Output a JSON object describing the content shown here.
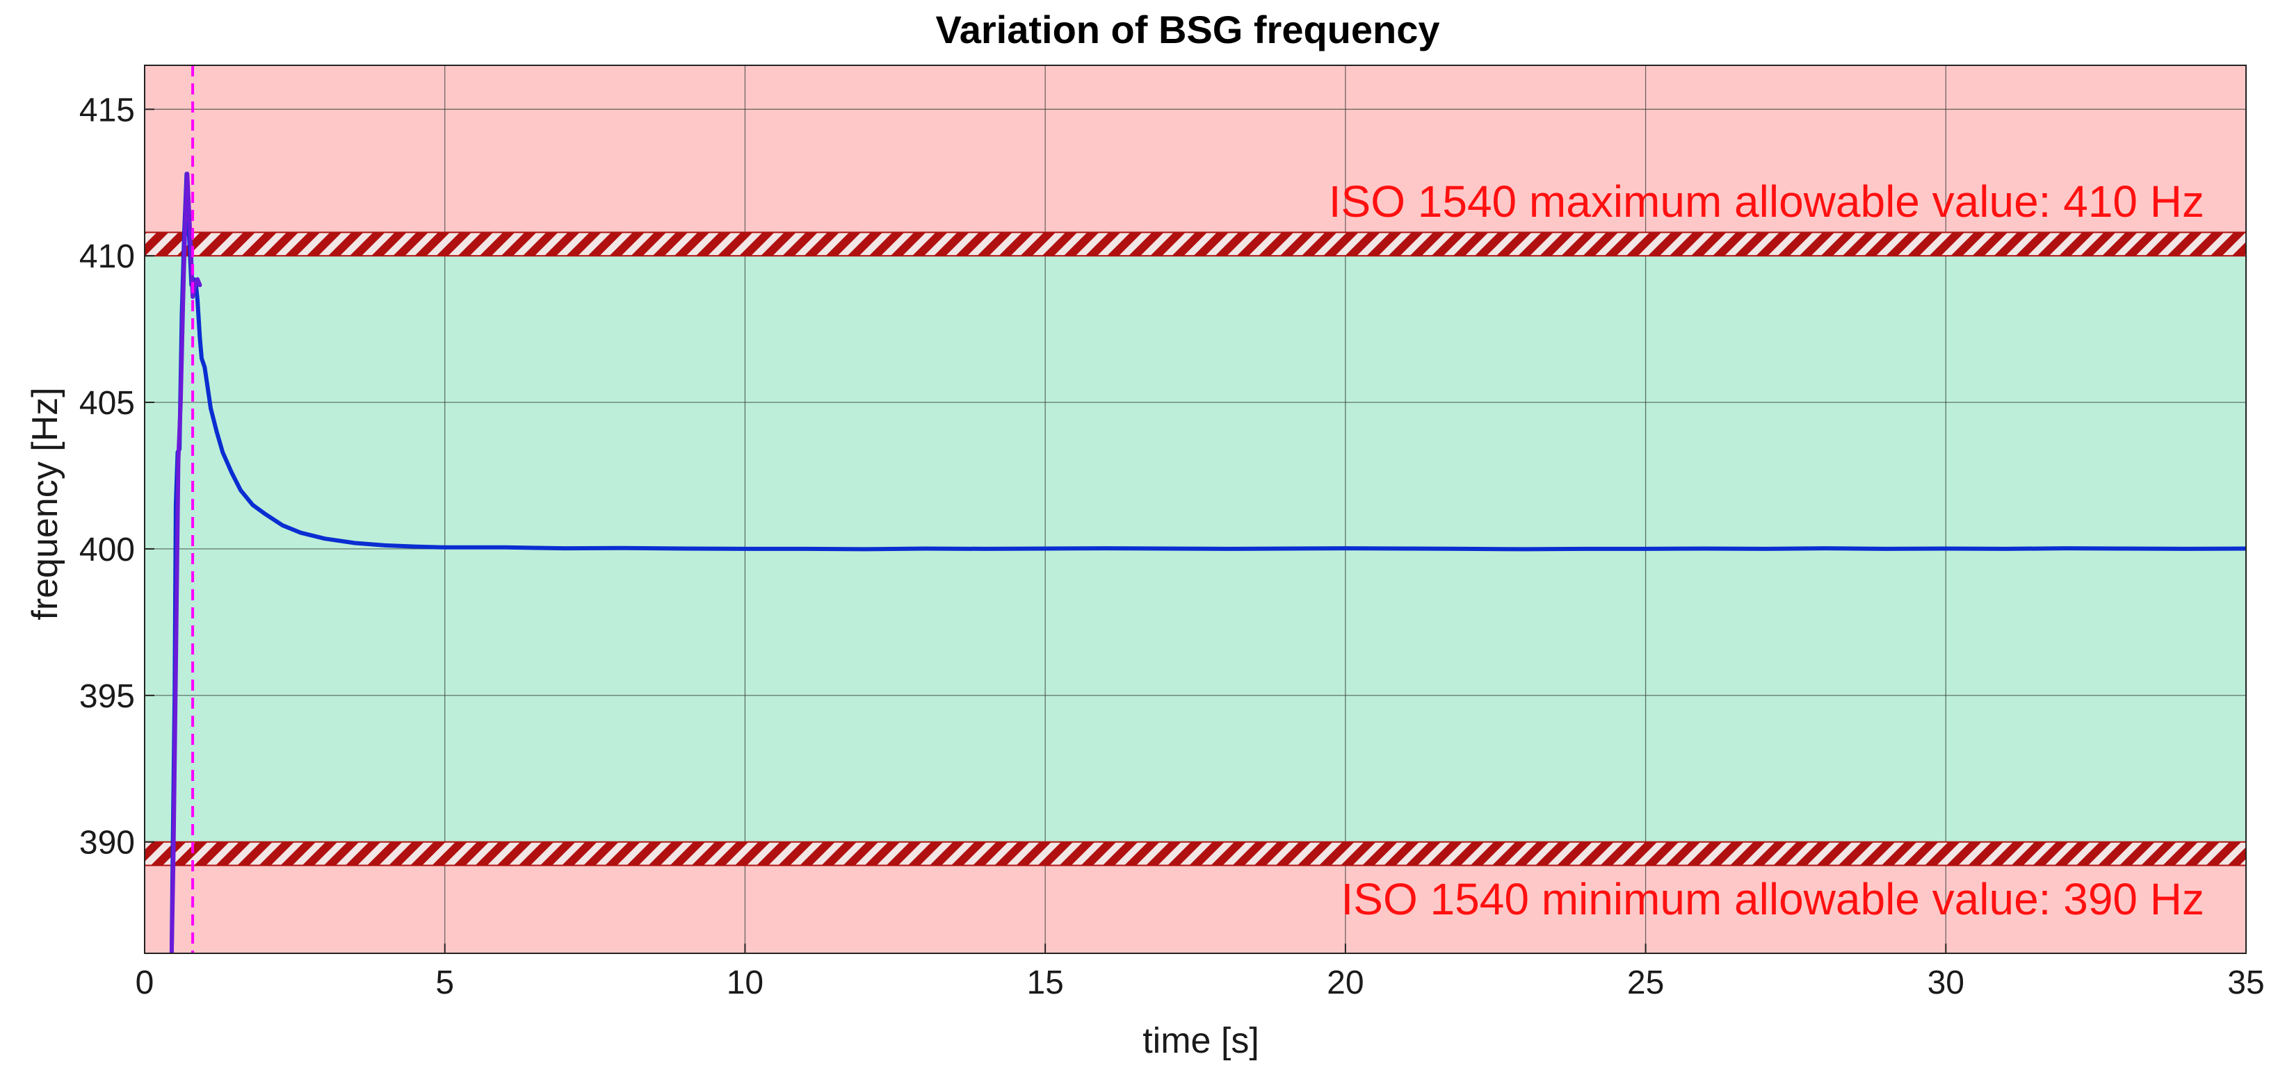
{
  "chart_data": {
    "type": "line",
    "title": "Variation of BSG frequency",
    "xlabel": "time [s]",
    "ylabel": "frequency [Hz]",
    "xlim": [
      0,
      35
    ],
    "ylim": [
      386.2,
      416.5
    ],
    "x_ticks": [
      0,
      5,
      10,
      15,
      20,
      25,
      30,
      35
    ],
    "y_ticks": [
      390,
      395,
      400,
      405,
      410,
      415
    ],
    "grid": true,
    "regions": [
      {
        "name": "above-max",
        "y_from": 410,
        "y_to": 416.5,
        "color": "#ffc8c8"
      },
      {
        "name": "allowable",
        "y_from": 390,
        "y_to": 410,
        "color": "#bdeed9"
      },
      {
        "name": "below-min",
        "y_from": 386.2,
        "y_to": 390,
        "color": "#ffc8c8"
      }
    ],
    "limit_bands": [
      {
        "name": "max-limit",
        "y_from": 410,
        "y_to": 410.8,
        "color": "#b01010"
      },
      {
        "name": "min-limit",
        "y_from": 389.2,
        "y_to": 390,
        "color": "#b01010"
      }
    ],
    "annotations": [
      {
        "name": "max-annotation",
        "text": "ISO 1540 maximum allowable value: 410 Hz",
        "x": 35,
        "y": 411.8,
        "anchor": "end",
        "color": "#ff1010"
      },
      {
        "name": "min-annotation",
        "text": "ISO 1540 minimum allowable value: 390 Hz",
        "x": 35,
        "y": 388.0,
        "anchor": "end",
        "color": "#ff1010"
      }
    ],
    "vline": {
      "x": 0.8,
      "color": "#ff00ff",
      "style": "dashed"
    },
    "series": [
      {
        "color": "#0a2ed1",
        "x": [
          0.45,
          0.47,
          0.5,
          0.52,
          0.55,
          0.58,
          0.62,
          0.66,
          0.7,
          0.72,
          0.75,
          0.78,
          0.82,
          0.85,
          0.88,
          0.92,
          0.95,
          1.0,
          1.05,
          1.1,
          1.15,
          1.2,
          1.3,
          1.45,
          1.6,
          1.8,
          2.0,
          2.3,
          2.6,
          3.0,
          3.5,
          4.0,
          4.5,
          5.0,
          6,
          7,
          8,
          9,
          10,
          11,
          12,
          13,
          14,
          15,
          16,
          17,
          18,
          19,
          20,
          21,
          22,
          23,
          24,
          25,
          26,
          27,
          28,
          29,
          30,
          31,
          32,
          33,
          34,
          35
        ],
        "y": [
          386.2,
          390.0,
          395.0,
          401.5,
          403.3,
          403.4,
          408.0,
          410.8,
          412.8,
          411.5,
          410.3,
          409.0,
          409.2,
          409.1,
          408.5,
          407.2,
          406.5,
          406.2,
          405.5,
          404.8,
          404.4,
          404.0,
          403.3,
          402.6,
          402.0,
          401.5,
          401.2,
          400.8,
          400.55,
          400.35,
          400.2,
          400.12,
          400.08,
          400.05,
          400.05,
          400.02,
          400.03,
          400.01,
          400.0,
          400.0,
          399.99,
          400.01,
          400.0,
          400.01,
          400.02,
          400.01,
          400.0,
          400.01,
          400.02,
          400.01,
          400.0,
          399.99,
          400.0,
          400.0,
          400.01,
          400.0,
          400.02,
          400.0,
          400.01,
          400.0,
          400.02,
          400.01,
          400.0,
          400.01
        ]
      },
      {
        "color": "#6a1bd8",
        "x": [
          0.45,
          0.48,
          0.52,
          0.56,
          0.6,
          0.64,
          0.68,
          0.71,
          0.74,
          0.77,
          0.8,
          0.84,
          0.88,
          0.92
        ],
        "y": [
          386.2,
          389.5,
          396.0,
          403.0,
          405.0,
          408.5,
          411.5,
          412.8,
          411.5,
          410.2,
          408.6,
          409.0,
          409.2,
          409.0
        ]
      }
    ]
  }
}
